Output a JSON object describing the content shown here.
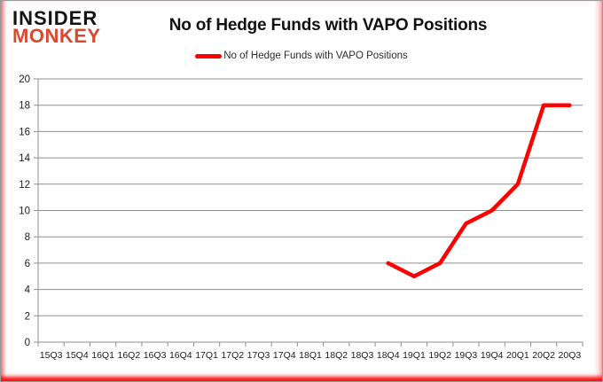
{
  "header": {
    "logo_line1": "INSIDER",
    "logo_line2": "MONKEY",
    "title": "No of Hedge Funds with VAPO Positions"
  },
  "legend": {
    "label": "No of Hedge Funds with VAPO Positions",
    "swatch": "red-line"
  },
  "colors": {
    "line": "#ff0000",
    "grid": "#8f8f8f",
    "axis": "#8f8f8f",
    "tick_label": "#1a1a1a",
    "logo_text": "#141414",
    "logo_accent": "#d9492c",
    "frame_glow": "#ff0000"
  },
  "chart_data": {
    "type": "line",
    "title": "No of Hedge Funds with VAPO Positions",
    "categories": [
      "15Q3",
      "15Q4",
      "16Q1",
      "16Q2",
      "16Q3",
      "16Q4",
      "17Q1",
      "17Q2",
      "17Q3",
      "17Q4",
      "18Q1",
      "18Q2",
      "18Q3",
      "18Q4",
      "19Q1",
      "19Q2",
      "19Q3",
      "19Q4",
      "20Q1",
      "20Q2",
      "20Q3"
    ],
    "series": [
      {
        "name": "No of Hedge Funds with VAPO Positions",
        "color": "#ff0000",
        "values": [
          null,
          null,
          null,
          null,
          null,
          null,
          null,
          null,
          null,
          null,
          null,
          null,
          null,
          6,
          5,
          6,
          9,
          10,
          12,
          18,
          18
        ]
      }
    ],
    "xlabel": "",
    "ylabel": "",
    "ylim": [
      0,
      20
    ],
    "yticks": [
      0,
      2,
      4,
      6,
      8,
      10,
      12,
      14,
      16,
      18,
      20
    ],
    "grid": true,
    "legend_position": "top-center"
  }
}
